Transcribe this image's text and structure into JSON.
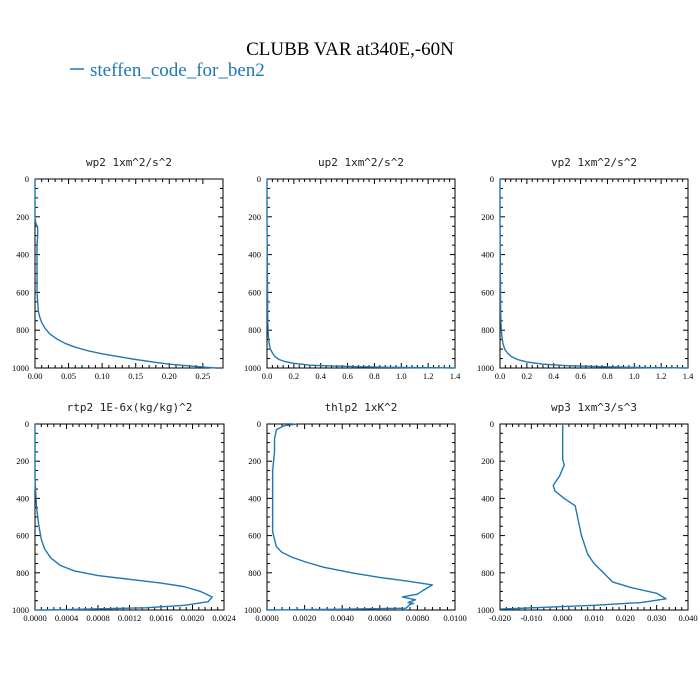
{
  "figure": {
    "title": "CLUBB VAR at340E,-60N",
    "legend_label": "steffen_code_for_ben2",
    "line_color": "#1f77b4"
  },
  "chart_data": [
    {
      "type": "line",
      "title": "wp2  1xm^2/s^2",
      "xlabel": "",
      "ylabel": "",
      "xlim": [
        0,
        0.28
      ],
      "ylim": [
        1000,
        0
      ],
      "x_ticks": [
        0,
        0.05,
        0.1,
        0.15,
        0.2,
        0.25
      ],
      "x_tick_labels": [
        "0.00",
        "0.05",
        "0.10",
        "0.15",
        "0.20",
        "0.25"
      ],
      "y_ticks": [
        0,
        200,
        400,
        600,
        800,
        1000
      ],
      "y_tick_labels": [
        "0",
        "200",
        "400",
        "600",
        "800",
        "1000"
      ],
      "series": [
        {
          "name": "steffen_code_for_ben2",
          "x": [
            0.0,
            0.0,
            0.001,
            0.004,
            0.004,
            0.003,
            0.003,
            0.003,
            0.003,
            0.003,
            0.003,
            0.004,
            0.005,
            0.007,
            0.01,
            0.015,
            0.022,
            0.032,
            0.045,
            0.06,
            0.08,
            0.1,
            0.125,
            0.15,
            0.175,
            0.2,
            0.25,
            0.27
          ],
          "y": [
            0,
            200,
            230,
            260,
            300,
            350,
            400,
            450,
            500,
            550,
            600,
            650,
            700,
            730,
            760,
            790,
            820,
            845,
            870,
            890,
            910,
            925,
            940,
            955,
            968,
            980,
            995,
            1000
          ]
        }
      ],
      "grid": false
    },
    {
      "type": "line",
      "title": "up2  1xm^2/s^2",
      "xlabel": "",
      "ylabel": "",
      "xlim": [
        0,
        1.4
      ],
      "ylim": [
        1000,
        0
      ],
      "x_ticks": [
        0,
        0.2,
        0.4,
        0.6,
        0.8,
        1.0,
        1.2,
        1.4
      ],
      "x_tick_labels": [
        "0.0",
        "0.2",
        "0.4",
        "0.6",
        "0.8",
        "1.0",
        "1.2",
        "1.4"
      ],
      "y_ticks": [
        0,
        200,
        400,
        600,
        800,
        1000
      ],
      "y_tick_labels": [
        "0",
        "200",
        "400",
        "600",
        "800",
        "1000"
      ],
      "series": [
        {
          "name": "steffen_code_for_ben2",
          "x": [
            0.0,
            0.0,
            0.002,
            0.003,
            0.004,
            0.005,
            0.006,
            0.008,
            0.011,
            0.016,
            0.025,
            0.04,
            0.06,
            0.09,
            0.13,
            0.2,
            0.32,
            0.5,
            0.8,
            1.1,
            1.3,
            1.4
          ],
          "y": [
            0,
            200,
            400,
            500,
            600,
            700,
            760,
            800,
            840,
            870,
            900,
            920,
            940,
            955,
            965,
            975,
            985,
            990,
            995,
            998,
            999,
            1000
          ]
        }
      ],
      "grid": false
    },
    {
      "type": "line",
      "title": "vp2  1xm^2/s^2",
      "xlabel": "",
      "ylabel": "",
      "xlim": [
        0,
        1.4
      ],
      "ylim": [
        1000,
        0
      ],
      "x_ticks": [
        0,
        0.2,
        0.4,
        0.6,
        0.8,
        1.0,
        1.2,
        1.4
      ],
      "x_tick_labels": [
        "0.0",
        "0.2",
        "0.4",
        "0.6",
        "0.8",
        "1.0",
        "1.2",
        "1.4"
      ],
      "y_ticks": [
        0,
        200,
        400,
        600,
        800,
        1000
      ],
      "y_tick_labels": [
        "0",
        "200",
        "400",
        "600",
        "800",
        "1000"
      ],
      "series": [
        {
          "name": "steffen_code_for_ben2",
          "x": [
            0.0,
            0.0,
            0.002,
            0.003,
            0.004,
            0.005,
            0.007,
            0.01,
            0.015,
            0.022,
            0.035,
            0.055,
            0.085,
            0.13,
            0.2,
            0.32,
            0.5,
            0.8,
            1.1,
            1.3,
            1.4
          ],
          "y": [
            0,
            200,
            400,
            500,
            600,
            700,
            760,
            800,
            840,
            870,
            900,
            920,
            940,
            955,
            968,
            980,
            988,
            994,
            998,
            999,
            1000
          ]
        }
      ],
      "grid": false
    },
    {
      "type": "line",
      "title": "rtp2  1E-6x(kg/kg)^2",
      "xlabel": "",
      "ylabel": "",
      "xlim": [
        0,
        0.0024
      ],
      "ylim": [
        1000,
        0
      ],
      "x_ticks": [
        0,
        0.0004,
        0.0008,
        0.0012,
        0.0016,
        0.002,
        0.0024
      ],
      "x_tick_labels": [
        "0.0000",
        "0.0004",
        "0.0008",
        "0.0012",
        "0.0016",
        "0.0020",
        "0.0024"
      ],
      "y_ticks": [
        0,
        200,
        400,
        600,
        800,
        1000
      ],
      "y_tick_labels": [
        "0",
        "200",
        "400",
        "600",
        "800",
        "1000"
      ],
      "series": [
        {
          "name": "steffen_code_for_ben2",
          "x": [
            0.0,
            0.0,
            2e-05,
            5e-05,
            8e-05,
            0.00012,
            0.0002,
            0.00032,
            0.0005,
            0.0008,
            0.0012,
            0.0016,
            0.0019,
            0.0021,
            0.00225,
            0.0022,
            0.0019,
            0.0014,
            0.0008,
            0.0004,
            0.0001,
            0.0
          ],
          "y": [
            0,
            300,
            450,
            550,
            620,
            670,
            720,
            760,
            790,
            815,
            835,
            855,
            875,
            900,
            930,
            955,
            975,
            988,
            994,
            998,
            1000,
            1000
          ]
        }
      ],
      "grid": false
    },
    {
      "type": "line",
      "title": "thlp2  1xK^2",
      "xlabel": "",
      "ylabel": "",
      "xlim": [
        0,
        0.01
      ],
      "ylim": [
        1000,
        0
      ],
      "x_ticks": [
        0,
        0.002,
        0.004,
        0.006,
        0.008,
        0.01
      ],
      "x_tick_labels": [
        "0.0000",
        "0.0020",
        "0.0040",
        "0.0060",
        "0.0080",
        "0.0100"
      ],
      "y_ticks": [
        0,
        200,
        400,
        600,
        800,
        1000
      ],
      "y_tick_labels": [
        "0",
        "200",
        "400",
        "600",
        "800",
        "1000"
      ],
      "series": [
        {
          "name": "steffen_code_for_ben2",
          "x": [
            0.0016,
            0.0009,
            0.0005,
            0.0004,
            0.0004,
            0.0003,
            0.0003,
            0.0003,
            0.0003,
            0.0003,
            0.0004,
            0.0005,
            0.0008,
            0.0013,
            0.002,
            0.003,
            0.0045,
            0.006,
            0.0075,
            0.0088,
            0.0083,
            0.008,
            0.0072,
            0.0079,
            0.0075,
            0.0078,
            0.0076,
            0.0074,
            0.004,
            0.001,
            0.0
          ],
          "y": [
            0,
            10,
            30,
            80,
            150,
            250,
            350,
            450,
            520,
            580,
            620,
            660,
            690,
            715,
            740,
            770,
            800,
            825,
            845,
            865,
            895,
            915,
            930,
            945,
            960,
            965,
            970,
            990,
            996,
            999,
            1000
          ]
        }
      ],
      "grid": false
    },
    {
      "type": "line",
      "title": "wp3  1xm^3/s^3",
      "xlabel": "",
      "ylabel": "",
      "xlim": [
        -0.02,
        0.04
      ],
      "ylim": [
        1000,
        0
      ],
      "x_ticks": [
        -0.02,
        -0.01,
        0,
        0.01,
        0.02,
        0.03,
        0.04
      ],
      "x_tick_labels": [
        "-0.020",
        "-0.010",
        "0.000",
        "0.010",
        "0.020",
        "0.030",
        "0.040"
      ],
      "y_ticks": [
        0,
        200,
        400,
        600,
        800,
        1000
      ],
      "y_tick_labels": [
        "0",
        "200",
        "400",
        "600",
        "800",
        "1000"
      ],
      "series": [
        {
          "name": "steffen_code_for_ben2",
          "x": [
            0.0,
            0.0,
            0.0,
            0.0005,
            -0.001,
            -0.003,
            -0.0025,
            0.0005,
            0.004,
            0.005,
            0.006,
            0.007,
            0.008,
            0.01,
            0.013,
            0.016,
            0.022,
            0.03,
            0.033,
            0.025,
            0.01,
            -0.005,
            -0.015,
            -0.02
          ],
          "y": [
            0,
            150,
            190,
            220,
            280,
            330,
            360,
            400,
            440,
            520,
            600,
            650,
            700,
            750,
            800,
            850,
            880,
            910,
            940,
            960,
            975,
            985,
            992,
            995
          ]
        }
      ],
      "grid": false
    }
  ]
}
